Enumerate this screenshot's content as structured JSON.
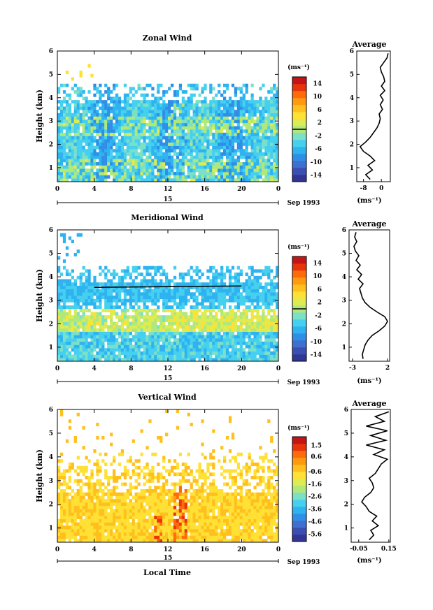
{
  "colorscale": [
    "#313695",
    "#3a4fb0",
    "#3f6fd0",
    "#2f8fe6",
    "#2fb3f0",
    "#46d0ef",
    "#7be0c8",
    "#b0e87a",
    "#dcec52",
    "#ffe034",
    "#ffc01e",
    "#ff9a10",
    "#ff6a0a",
    "#e8340a",
    "#c41416"
  ],
  "chart_data": [
    {
      "type": "heatmap",
      "title": "Zonal Wind",
      "ylabel": "Height (km)",
      "x_ticks": [
        "0",
        "4",
        "8",
        "12",
        "16",
        "20",
        "0"
      ],
      "y_ticks": [
        "1",
        "2",
        "3",
        "4",
        "5",
        "6"
      ],
      "xlim": [
        0,
        24
      ],
      "ylim": [
        0.4,
        6
      ],
      "date_label": "15",
      "month_label": "Sep 1993",
      "colorbar": {
        "unit": "(ms⁻¹)",
        "labels": [
          "14",
          "10",
          "6",
          "2",
          "-2",
          "-6",
          "-10",
          "-14"
        ],
        "min": -16,
        "max": 16
      },
      "average": {
        "title": "Average",
        "xlabel": "(ms⁻¹)",
        "x_ticks": [
          "-8",
          "0"
        ],
        "xlim": [
          -11,
          4
        ],
        "heights": [
          0.5,
          0.7,
          0.9,
          1.1,
          1.3,
          1.5,
          1.7,
          1.9,
          2.1,
          2.3,
          2.5,
          2.7,
          2.9,
          3.1,
          3.3,
          3.5,
          3.7,
          3.9,
          4.1,
          4.3,
          4.5,
          4.7,
          4.9,
          5.1,
          5.3,
          5.5,
          5.7,
          5.9
        ],
        "values": [
          -5,
          -7,
          -4,
          -6,
          -3,
          -5,
          -8,
          -9.5,
          -7,
          -5,
          -3.5,
          -2,
          -1,
          -0.5,
          -1,
          0.5,
          -0.5,
          0.8,
          -0.5,
          1.5,
          0,
          1.5,
          1,
          0,
          -0.5,
          1,
          2.5,
          3
        ]
      }
    },
    {
      "type": "heatmap",
      "title": "Meridional Wind",
      "ylabel": "Height (km)",
      "x_ticks": [
        "0",
        "4",
        "8",
        "12",
        "16",
        "20",
        "0"
      ],
      "y_ticks": [
        "1",
        "2",
        "3",
        "4",
        "5",
        "6"
      ],
      "xlim": [
        0,
        24
      ],
      "ylim": [
        0.4,
        6
      ],
      "date_label": "15",
      "month_label": "Sep 1993",
      "colorbar": {
        "unit": "(ms⁻¹)",
        "labels": [
          "14",
          "10",
          "6",
          "2",
          "-2",
          "-6",
          "-10",
          "-14"
        ],
        "min": -16,
        "max": 16
      },
      "average": {
        "title": "Average",
        "xlabel": "(ms⁻¹)",
        "x_ticks": [
          "-3",
          "2"
        ],
        "xlim": [
          -3.5,
          2.3
        ],
        "heights": [
          0.5,
          0.7,
          0.9,
          1.1,
          1.3,
          1.5,
          1.7,
          1.9,
          2.1,
          2.3,
          2.5,
          2.7,
          2.9,
          3.1,
          3.3,
          3.5,
          3.7,
          3.9,
          4.1,
          4.3,
          4.5,
          4.7,
          4.9,
          5.1,
          5.3,
          5.5,
          5.7,
          5.9
        ],
        "values": [
          -1.5,
          -1.6,
          -1.4,
          -1.2,
          -0.8,
          -0.2,
          0.8,
          1.6,
          2,
          1.6,
          0.5,
          -0.5,
          -1.2,
          -1.6,
          -1.8,
          -2,
          -1.5,
          -2.2,
          -1.7,
          -2.4,
          -1.9,
          -2.5,
          -2.1,
          -2.6,
          -2.8,
          -2.4,
          -2.7,
          -2.5
        ]
      }
    },
    {
      "type": "heatmap",
      "title": "Vertical Wind",
      "ylabel": "Height (km)",
      "xlabel": "Local Time",
      "x_ticks": [
        "0",
        "4",
        "8",
        "12",
        "16",
        "20",
        "0"
      ],
      "y_ticks": [
        "1",
        "2",
        "3",
        "4",
        "5",
        "6"
      ],
      "xlim": [
        0,
        24
      ],
      "ylim": [
        0.4,
        6
      ],
      "date_label": "15",
      "month_label": "Sep 1993",
      "colorbar": {
        "unit": "(ms⁻¹)",
        "labels": [
          "1.5",
          "0.6",
          "-0.6",
          "-1.6",
          "-2.6",
          "-3.6",
          "-4.6",
          "-5.6"
        ],
        "min": -6.2,
        "max": 2.2
      },
      "average": {
        "title": "Average",
        "xlabel": "(ms⁻¹)",
        "x_ticks": [
          "-0.05",
          "0.15"
        ],
        "xlim": [
          -0.1,
          0.16
        ],
        "heights": [
          0.5,
          0.7,
          0.9,
          1.1,
          1.3,
          1.5,
          1.7,
          1.9,
          2.1,
          2.3,
          2.5,
          2.7,
          2.9,
          3.1,
          3.3,
          3.5,
          3.7,
          3.9,
          4.1,
          4.3,
          4.5,
          4.7,
          4.9,
          5.1,
          5.3,
          5.5,
          5.7,
          5.9
        ],
        "values": [
          0.02,
          0.05,
          0.03,
          0.08,
          0.04,
          0.07,
          0.02,
          0.0,
          -0.03,
          -0.01,
          0.03,
          0.05,
          0.04,
          0.02,
          0.06,
          0.08,
          0.1,
          0.14,
          0.05,
          0.12,
          0.0,
          0.13,
          0.03,
          0.14,
          0.0,
          0.12,
          0.06,
          0.15
        ]
      }
    }
  ]
}
